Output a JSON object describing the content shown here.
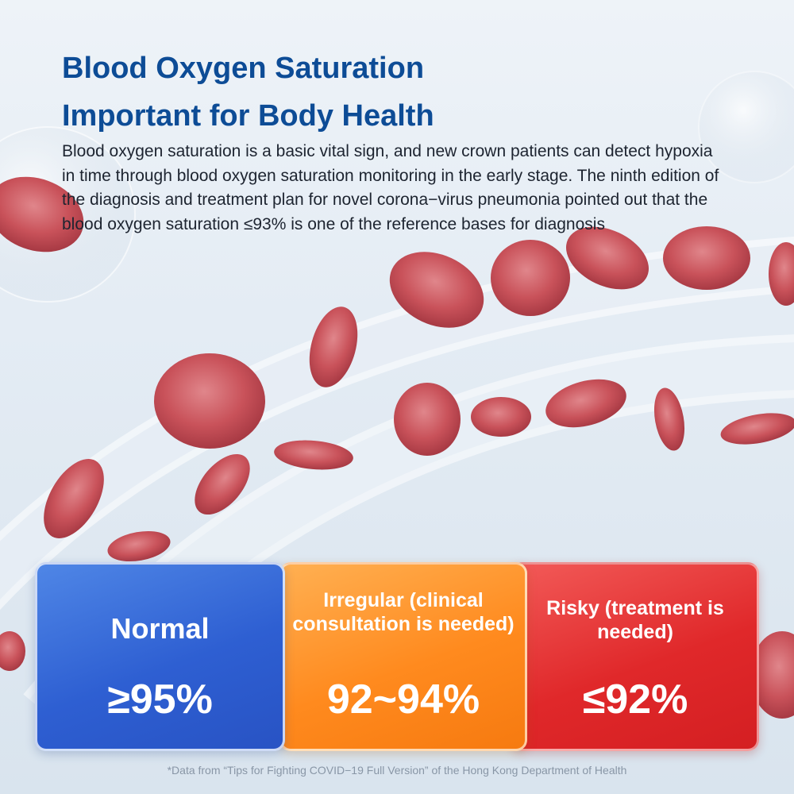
{
  "header": {
    "title_line1": "Blood Oxygen Saturation",
    "title_line2": "Important for Body Health"
  },
  "intro": {
    "text": "Blood oxygen saturation is a basic vital sign, and new crown patients can detect hypoxia in time through blood oxygen saturation monitoring in the early stage. The ninth edition of the diagnosis and treatment plan for novel corona−virus pneumonia pointed out that the blood oxygen saturation ≤93% is one of the reference bases for diagnosis"
  },
  "cards": [
    {
      "label": "Normal",
      "value": "≥95%",
      "color": "#2e5fd2"
    },
    {
      "label": "Irregular (clinical consultation is needed)",
      "value": "92~94%",
      "color": "#ff8a1e"
    },
    {
      "label": "Risky (treatment is needed)",
      "value": "≤92%",
      "color": "#e0282a"
    }
  ],
  "footnote": "*Data from “Tips for Fighting COVID−19 Full Version” of the Hong Kong Department of Health",
  "colors": {
    "title": "#0d4c96",
    "cell": "#c9525a"
  }
}
